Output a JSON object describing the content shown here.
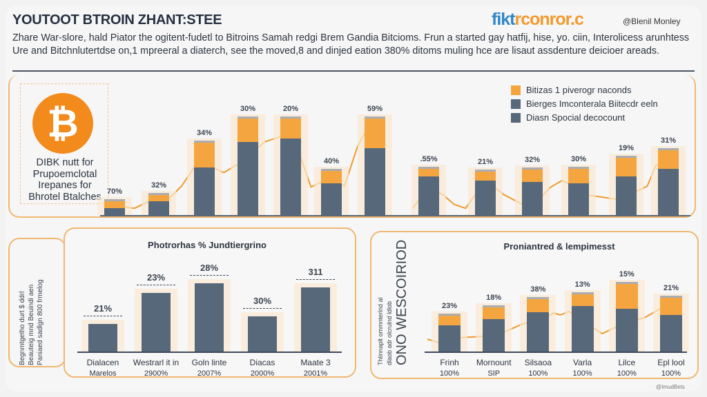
{
  "header": {
    "title": "YOUTOOT BTROIN ZHANT:STEE",
    "brand_main": "fikt",
    "brand_accent": "rconror.c",
    "handle": "@Blenil Monley",
    "description": "Zhare War-slore, hald Piator the ogitent-fudetl to Bitroins Samah redgi Brem Gandia Bitcioms. Frun a started gay hatfij, hise, yo. ciin, Interolicess arunhtess Ure and Bitchnlutertdse on,1 mpreeral a diaterch, see the moved,8 and dinjed eation 380% ditoms muling hce are lisaut assdenture deicioer areads."
  },
  "side_note": {
    "lines": [
      "DIBK nutt for",
      "Prupoemclotal",
      "Irepanes for",
      "Bhrotel Btalches"
    ],
    "icon": "bitcoin-icon"
  },
  "colors": {
    "orange": "#f5a540",
    "slate": "#56687a",
    "accent_border": "#f0b770"
  },
  "chart_data": [
    {
      "type": "bar",
      "stacked": true,
      "title": "",
      "legend_position": "top-right",
      "legend": [
        "Bitizas 1 piverogr naconds",
        "Bierges Imconterala Biitecdr eeln",
        "Diasn Spocial decocount"
      ],
      "labels": [
        "70%",
        "32%",
        "34%",
        "30%",
        "20%",
        "40%",
        "59%",
        ".55%",
        "21%",
        "32%",
        "30%",
        "19%",
        "31%"
      ],
      "series": [
        {
          "color": "#56687a",
          "values": [
            7,
            14,
            49,
            76,
            79,
            33,
            69,
            40,
            36,
            34,
            33,
            40,
            48
          ]
        },
        {
          "color": "#f5a540",
          "values": [
            7,
            7,
            26,
            24,
            21,
            13,
            31,
            8,
            9,
            13,
            15,
            19,
            19
          ]
        }
      ],
      "line": [
        [
          [
            -0.2,
            11
          ],
          [
            0.45,
            7
          ],
          [
            0.9,
            17
          ],
          [
            1.2,
            16
          ],
          [
            1.5,
            30
          ],
          [
            1.8,
            51
          ],
          [
            2.1,
            51
          ],
          [
            2.45,
            44
          ],
          [
            2.85,
            55
          ],
          [
            3.15,
            67
          ],
          [
            3.4,
            76
          ],
          [
            3.75,
            81
          ],
          [
            4,
            80
          ],
          [
            4.15,
            71
          ],
          [
            4.5,
            29
          ],
          [
            4.8,
            35
          ],
          [
            5.1,
            35
          ],
          [
            5.3,
            30
          ],
          [
            5.6,
            71
          ],
          [
            5.95,
            100
          ]
        ],
        [
          [
            6.7,
            7
          ],
          [
            7,
            29
          ],
          [
            7.25,
            21
          ],
          [
            7.45,
            11
          ],
          [
            7.65,
            7
          ],
          [
            8,
            36
          ],
          [
            8.4,
            21
          ],
          [
            8.95,
            7
          ],
          [
            9.4,
            29
          ],
          [
            9.65,
            36
          ],
          [
            10.15,
            21
          ],
          [
            10.85,
            16
          ],
          [
            11.5,
            30
          ],
          [
            11.7,
            51
          ],
          [
            12,
            58
          ]
        ]
      ]
    },
    {
      "type": "bar",
      "title": "Photrorhas % Jundtiergrino",
      "side_label": [
        "Begnmtgetho durt $ ddrl",
        "Beauteig mnd Beuindi aen",
        "Paniaed sadlgn 800 frmelog"
      ],
      "categories": [
        [
          "Dialacen",
          "Marelos"
        ],
        [
          "Westrarl it in",
          "2900%"
        ],
        [
          "Goln linte",
          "2007%"
        ],
        [
          "Diacas",
          "2000%"
        ],
        [
          "Maate 3",
          "2001%"
        ]
      ],
      "labels": [
        "21%",
        "23%",
        "28%",
        "30%",
        "311"
      ],
      "values": [
        40,
        85,
        99,
        51,
        93
      ]
    },
    {
      "type": "bar",
      "stacked": true,
      "title": "Proniantred & lempimesst",
      "side_label": [
        "Thlinnaplt ommnterlnd al",
        "dlaob adr olcrulnd ldlob",
        "ONO WESCOIRIOD"
      ],
      "categories": [
        [
          "Frinh",
          "100%"
        ],
        [
          "Mornount",
          "SIP"
        ],
        [
          "Silsaoa",
          "100%"
        ],
        [
          "Varla",
          "100%"
        ],
        [
          "Lilce",
          "100%"
        ],
        [
          "Epl lool",
          "100%"
        ]
      ],
      "labels": [
        "23%",
        "18%",
        "38%",
        "13%",
        "15%",
        "21%"
      ],
      "series": [
        {
          "color": "#56687a",
          "values": [
            38,
            47,
            57,
            66,
            62,
            53
          ]
        },
        {
          "color": "#f5a540",
          "values": [
            14,
            17,
            19,
            17,
            36,
            25
          ]
        }
      ],
      "line": [
        [
          [
            -0.5,
            18
          ],
          [
            -0.25,
            13
          ],
          [
            0.2,
            20
          ],
          [
            1.05,
            23
          ],
          [
            1.65,
            40
          ],
          [
            2.2,
            50
          ],
          [
            2.35,
            56
          ],
          [
            2.5,
            53
          ],
          [
            2.7,
            58
          ],
          [
            3.2,
            36
          ],
          [
            3.45,
            26
          ],
          [
            3.9,
            40
          ],
          [
            4.4,
            49
          ],
          [
            4.7,
            60
          ],
          [
            4.8,
            64
          ]
        ]
      ]
    }
  ],
  "watermark": "@ImudBets"
}
